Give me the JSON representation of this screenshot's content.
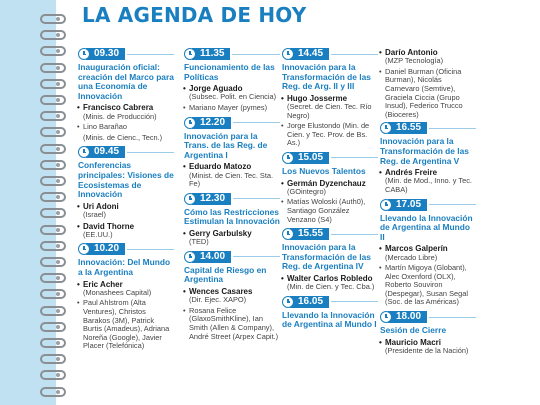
{
  "title": "LA AGENDA DE HOY",
  "columns": [
    {
      "sessions": [
        {
          "time": "09.30",
          "title": "Inauguración oficial: creación del Marco para una Economía de Innovación",
          "speakers": [
            {
              "name": "Francisco Cabrera",
              "role": "(Minis. de Producción)",
              "bold": true
            },
            {
              "name": "Lino Barañao",
              "role": "(Minis. de Cienc., Tecn.)",
              "bold": false
            }
          ]
        },
        {
          "time": "09.45",
          "title": "Conferencias principales: Visiones de Ecosistemas de Innovación",
          "speakers": [
            {
              "name": "Uri Adoni",
              "role": "(Israel)",
              "bold": true
            },
            {
              "name": "David Thorne",
              "role": "(EE.UU.)",
              "bold": true
            }
          ]
        },
        {
          "time": "10.20",
          "title": "Innovación: Del Mundo a la Argentina",
          "speakers": [
            {
              "name": "Eric Acher",
              "role": "(Monashees Capital)",
              "bold": true
            },
            {
              "name": "Paul Ahlstrom (Alta Ventures), Christos Barakos (3M), Patrick Burtis (Amadeus), Adriana Noreña (Google), Javier Placer (Telefónica)",
              "role": "",
              "bold": false
            }
          ]
        }
      ]
    },
    {
      "sessions": [
        {
          "time": "11.35",
          "title": "Funcionamiento de las Políticas",
          "speakers": [
            {
              "name": "Jorge Aguado",
              "role": "(Subsec. Polit. en Ciencia)",
              "bold": true
            },
            {
              "name": "Mariano Mayer (pymes)",
              "role": "",
              "bold": false
            }
          ]
        },
        {
          "time": "12.20",
          "title": "Innovación para la Trans. de las Reg. de Argentina I",
          "speakers": [
            {
              "name": "Eduardo Matozo",
              "role": "(Minist. de Cien. Tec. Sta. Fe)",
              "bold": true
            }
          ]
        },
        {
          "time": "12.30",
          "title": "Cómo las Restricciones Estimulan la Innovación",
          "speakers": [
            {
              "name": "Gerry Garbulsky",
              "role": "(TED)",
              "bold": true
            }
          ]
        },
        {
          "time": "14.00",
          "title": "Capital de Riesgo en Argentina",
          "speakers": [
            {
              "name": "Wences Casares",
              "role": "(Dir. Ejec. XAPO)",
              "bold": true
            },
            {
              "name": "Rosana Felice (GlaxoSmithKline), Ian Smith (Allen & Company), André Street (Arpex Capit.)",
              "role": "",
              "bold": false
            }
          ]
        }
      ]
    },
    {
      "sessions": [
        {
          "time": "14.45",
          "title": "Innovación para la Transformación de las Reg. de Arg. II y III",
          "speakers": [
            {
              "name": "Hugo Josserme",
              "role": "(Secret. de Cien. Tec. Río Negro)",
              "bold": true
            },
            {
              "name": "Jorge Elustondo (Min. de Cien. y Tec. Prov. de Bs. As.)",
              "role": "",
              "bold": false
            }
          ]
        },
        {
          "time": "15.05",
          "title": "Los Nuevos Talentos",
          "speakers": [
            {
              "name": "Germán Dyzenchauz",
              "role": "(GOintegro)",
              "bold": true
            },
            {
              "name": "Matías Woloski (Auth0), Santiago González Venzano (S4)",
              "role": "",
              "bold": false
            }
          ]
        },
        {
          "time": "15.55",
          "title": "Innovación para la Transformación de las Reg. de Argentina IV",
          "speakers": [
            {
              "name": "Walter Carlos Robledo",
              "role": "(Min. de Cien. y Tec. Cba.)",
              "bold": true
            }
          ]
        },
        {
          "time": "16.05",
          "title": "Llevando la Innovación de Argentina al Mundo I",
          "speakers": []
        }
      ]
    },
    {
      "lead": {
        "name": "Darío Antonio",
        "role": "(MZP Tecnología)",
        "others": "Daniel Burman (Oficina Burman), Nicolás Carnevaro (Semtive), Graciela Ciccia (Grupo Insud), Federico Trucco (Bioceres)"
      },
      "sessions": [
        {
          "time": "16.55",
          "title": "Innovación para la Transformación de las Reg. de Argentina V",
          "speakers": [
            {
              "name": "Andrés Freire",
              "role": "(Min. de Mod., Inno. y Tec. CABA)",
              "bold": true
            }
          ]
        },
        {
          "time": "17.05",
          "title": "Llevando la Innovación de Argentina al Mundo II",
          "speakers": [
            {
              "name": "Marcos Galperín",
              "role": "(Mercado Libre)",
              "bold": true
            },
            {
              "name": "Martín Migoya (Globant), Alec Oxenford (OLX), Roberto Souviron (Despegar), Susan Segal (Soc. de las Américas)",
              "role": "",
              "bold": false
            }
          ]
        },
        {
          "time": "18.00",
          "title": "Sesión de Cierre",
          "speakers": [
            {
              "name": "Mauricio Macri",
              "role": "(Presidente de la Nación)",
              "bold": true
            }
          ]
        }
      ]
    }
  ]
}
